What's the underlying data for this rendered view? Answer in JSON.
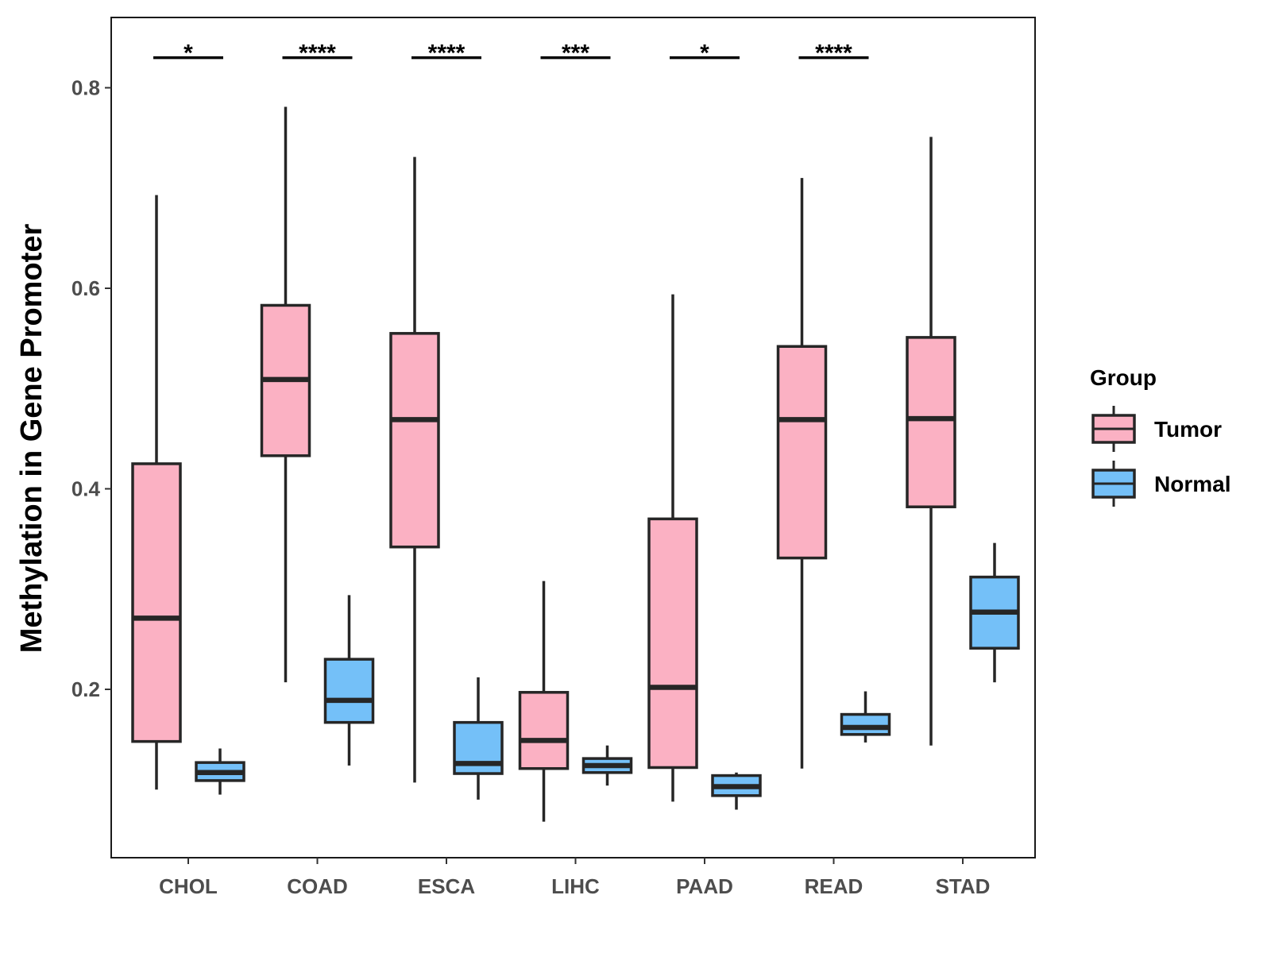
{
  "chart_data": {
    "type": "boxplot",
    "title": "",
    "xlabel": "",
    "ylabel": "Methylation in Gene Promoter",
    "ylim": [
      0.035,
      0.88
    ],
    "yticks": [
      {
        "value": 0.2,
        "label": "0.2"
      },
      {
        "value": 0.4,
        "label": "0.4"
      },
      {
        "value": 0.6,
        "label": "0.6"
      },
      {
        "value": 0.8,
        "label": "0.8"
      }
    ],
    "grid": false,
    "categories": [
      "CHOL",
      "COAD",
      "ESCA",
      "LIHC",
      "PAAD",
      "READ",
      "STAD"
    ],
    "series": [
      {
        "name": "Tumor",
        "color": "#fbb1c3",
        "boxes": [
          {
            "min": 0.1,
            "q1": 0.148,
            "median": 0.271,
            "q3": 0.425,
            "max": 0.693
          },
          {
            "min": 0.207,
            "q1": 0.433,
            "median": 0.509,
            "q3": 0.583,
            "max": 0.781
          },
          {
            "min": 0.107,
            "q1": 0.342,
            "median": 0.469,
            "q3": 0.555,
            "max": 0.731
          },
          {
            "min": 0.068,
            "q1": 0.121,
            "median": 0.149,
            "q3": 0.197,
            "max": 0.308
          },
          {
            "min": 0.088,
            "q1": 0.122,
            "median": 0.202,
            "q3": 0.37,
            "max": 0.594
          },
          {
            "min": 0.121,
            "q1": 0.331,
            "median": 0.469,
            "q3": 0.542,
            "max": 0.71
          },
          {
            "min": 0.144,
            "q1": 0.382,
            "median": 0.47,
            "q3": 0.551,
            "max": 0.751
          }
        ]
      },
      {
        "name": "Normal",
        "color": "#74c0f8",
        "boxes": [
          {
            "min": 0.095,
            "q1": 0.109,
            "median": 0.117,
            "q3": 0.127,
            "max": 0.141
          },
          {
            "min": 0.124,
            "q1": 0.167,
            "median": 0.189,
            "q3": 0.23,
            "max": 0.294
          },
          {
            "min": 0.09,
            "q1": 0.116,
            "median": 0.126,
            "q3": 0.167,
            "max": 0.212
          },
          {
            "min": 0.104,
            "q1": 0.117,
            "median": 0.124,
            "q3": 0.131,
            "max": 0.144
          },
          {
            "min": 0.08,
            "q1": 0.094,
            "median": 0.103,
            "q3": 0.114,
            "max": 0.117
          },
          {
            "min": 0.147,
            "q1": 0.155,
            "median": 0.162,
            "q3": 0.175,
            "max": 0.198
          },
          {
            "min": 0.207,
            "q1": 0.241,
            "median": 0.277,
            "q3": 0.312,
            "max": 0.346
          }
        ]
      }
    ],
    "significance": [
      {
        "category": "CHOL",
        "label": "*"
      },
      {
        "category": "COAD",
        "label": "****"
      },
      {
        "category": "ESCA",
        "label": "****"
      },
      {
        "category": "LIHC",
        "label": "***"
      },
      {
        "category": "PAAD",
        "label": "*"
      },
      {
        "category": "READ",
        "label": "****"
      },
      {
        "category": "STAD",
        "label": ""
      }
    ],
    "significance_y": 0.83,
    "legend": {
      "title": "Group",
      "position": "right",
      "entries": [
        "Tumor",
        "Normal"
      ]
    }
  }
}
